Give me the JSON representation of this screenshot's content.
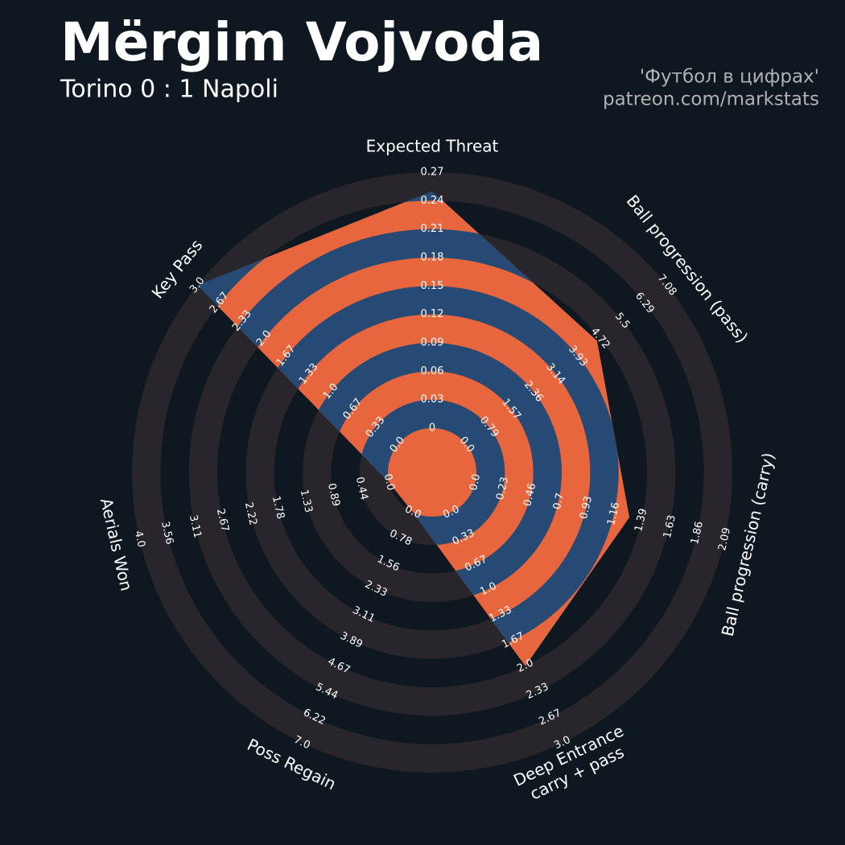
{
  "chart_data": {
    "type": "radar",
    "title": "Mërgim Vojvoda",
    "subtitle": "Torino 0 : 1 Napoli",
    "credits": [
      "'Футбол в цифрах'",
      "patreon.com/markstats"
    ],
    "colors": {
      "background": "#0f1820",
      "ring_outside": "#28252b",
      "ring_inside_a": "#274a74",
      "ring_inside_b": "#e8663d"
    },
    "axes": [
      {
        "label_lines": [
          "Expected Threat"
        ],
        "ticks": [
          0.0,
          0.03,
          0.06,
          0.09,
          0.12,
          0.15,
          0.18,
          0.21,
          0.24,
          0.27
        ],
        "value": 0.25
      },
      {
        "label_lines": [
          "Ball progression (pass)"
        ],
        "ticks": [
          {
            "value": 0,
            "label": "0.0"
          },
          0.79,
          1.57,
          2.36,
          3.14,
          3.93,
          4.72,
          5.5,
          6.29,
          7.08
        ],
        "value": 4.61
      },
      {
        "label_lines": [
          "Ball progression (carry)"
        ],
        "ticks": [
          {
            "value": 0,
            "label": "0.0"
          },
          0.23,
          0.46,
          0.7,
          0.93,
          1.16,
          1.39,
          1.63,
          1.86,
          2.09
        ],
        "value": 1.29
      },
      {
        "label_lines": [
          "Deep Entrance",
          "carry + pass"
        ],
        "ticks": [
          {
            "value": 0,
            "label": "0.0"
          },
          0.33,
          0.67,
          {
            "value": 1,
            "label": "1.0"
          },
          1.33,
          1.67,
          {
            "value": 2,
            "label": "2.0"
          },
          2.33,
          2.67,
          {
            "value": 3,
            "label": "3.0"
          }
        ],
        "value": 2.0
      },
      {
        "label_lines": [
          "Poss Regain"
        ],
        "ticks": [
          {
            "value": 0,
            "label": "0.0"
          },
          0.78,
          1.56,
          2.33,
          3.11,
          3.89,
          4.67,
          5.44,
          6.22,
          {
            "value": 7,
            "label": "7.0"
          }
        ],
        "value": 0
      },
      {
        "label_lines": [
          "Aerials Won"
        ],
        "ticks": [
          {
            "value": 0,
            "label": "0.0"
          },
          0.44,
          0.89,
          1.33,
          1.78,
          2.22,
          2.67,
          3.11,
          3.56,
          {
            "value": 4,
            "label": "4.0"
          }
        ],
        "value": 0
      },
      {
        "label_lines": [
          "Key Pass"
        ],
        "ticks": [
          {
            "value": 0,
            "label": "0.0"
          },
          0.33,
          0.67,
          {
            "value": 1,
            "label": "1.0"
          },
          1.33,
          1.67,
          {
            "value": 2,
            "label": "2.0"
          },
          2.33,
          2.67,
          {
            "value": 3,
            "label": "3.0"
          }
        ],
        "value": 3.0
      }
    ]
  }
}
